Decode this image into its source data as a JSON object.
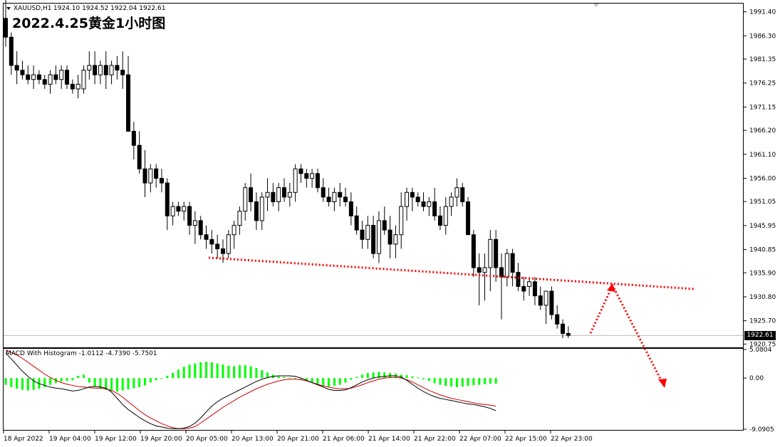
{
  "header": {
    "symbol": "XAUUSD,H1",
    "ohlc": "1924.10 1924.52 1922.04 1922.61",
    "title": "2022.4.25黄金1小时图",
    "last_price": "1922.61"
  },
  "colors": {
    "bull_body": "#ffffff",
    "bear_body": "#000000",
    "histogram": "#00ff00",
    "macd_line": "#000000",
    "signal_line": "#cc0000",
    "annotation": "#ff0000"
  },
  "price_axis": {
    "ticks": [
      "1991.40",
      "1986.30",
      "1981.35",
      "1976.25",
      "1971.15",
      "1966.20",
      "1961.10",
      "1956.00",
      "1951.05",
      "1945.95",
      "1940.85",
      "1935.90",
      "1930.80",
      "1925.70",
      "1920.75"
    ]
  },
  "macd_axis": {
    "ticks": [
      "5.0804",
      "0.00",
      "-9.0905"
    ]
  },
  "time_axis": {
    "labels": [
      "18 Apr 2022",
      "19 Apr 04:00",
      "19 Apr 12:00",
      "19 Apr 20:00",
      "20 Apr 05:00",
      "20 Apr 13:00",
      "20 Apr 21:00",
      "21 Apr 06:00",
      "21 Apr 14:00",
      "21 Apr 22:00",
      "22 Apr 07:00",
      "22 Apr 15:00",
      "22 Apr 23:00"
    ]
  },
  "macd_panel": {
    "label": "MACD With Histogram -1.0112 -4.7390 -5.7501"
  },
  "chart_data": [
    {
      "type": "candlestick",
      "y_range": [
        1920.2,
        1993.0
      ],
      "y_scale": "linear",
      "candles": [
        [
          1990,
          1994,
          1984,
          1986
        ],
        [
          1986,
          1987,
          1978,
          1980
        ],
        [
          1980,
          1983,
          1976,
          1979
        ],
        [
          1979,
          1981,
          1977,
          1978
        ],
        [
          1978,
          1980,
          1976,
          1977
        ],
        [
          1977,
          1980,
          1975,
          1978
        ],
        [
          1978,
          1979,
          1976,
          1977
        ],
        [
          1977,
          1978,
          1975,
          1976
        ],
        [
          1976,
          1979,
          1974,
          1978
        ],
        [
          1978,
          1980,
          1976,
          1977
        ],
        [
          1977,
          1980,
          1975,
          1979
        ],
        [
          1979,
          1980,
          1975,
          1976
        ],
        [
          1976,
          1977,
          1974,
          1975
        ],
        [
          1975,
          1978,
          1973,
          1976
        ],
        [
          1975,
          1980,
          1974,
          1979
        ],
        [
          1979,
          1983,
          1977,
          1980
        ],
        [
          1980,
          1983,
          1976,
          1978
        ],
        [
          1978,
          1981,
          1976,
          1980
        ],
        [
          1980,
          1983,
          1975,
          1978
        ],
        [
          1978,
          1981,
          1976,
          1980
        ],
        [
          1980,
          1982,
          1977,
          1979
        ],
        [
          1979,
          1983,
          1975,
          1978
        ],
        [
          1978,
          1982,
          1966,
          1966
        ],
        [
          1966,
          1968,
          1960,
          1963
        ],
        [
          1963,
          1966,
          1957,
          1958
        ],
        [
          1958,
          1962,
          1952,
          1955
        ],
        [
          1955,
          1959,
          1953,
          1958
        ],
        [
          1958,
          1959,
          1954,
          1956
        ],
        [
          1956,
          1958,
          1953,
          1955
        ],
        [
          1955,
          1956,
          1945,
          1948
        ],
        [
          1948,
          1951,
          1946,
          1950
        ],
        [
          1950,
          1951,
          1948,
          1949
        ],
        [
          1949,
          1951,
          1947,
          1950
        ],
        [
          1950,
          1951,
          1944,
          1946
        ],
        [
          1946,
          1949,
          1942,
          1947
        ],
        [
          1947,
          1948,
          1943,
          1944
        ],
        [
          1944,
          1946,
          1941,
          1943
        ],
        [
          1943,
          1945,
          1940,
          1942
        ],
        [
          1942,
          1944,
          1939,
          1941
        ],
        [
          1941,
          1943,
          1938,
          1940
        ],
        [
          1940,
          1945,
          1939,
          1944
        ],
        [
          1944,
          1947,
          1941,
          1946
        ],
        [
          1946,
          1950,
          1944,
          1949
        ],
        [
          1949,
          1955,
          1947,
          1954
        ],
        [
          1954,
          1957,
          1949,
          1951
        ],
        [
          1951,
          1953,
          1945,
          1947
        ],
        [
          1947,
          1953,
          1945,
          1952
        ],
        [
          1952,
          1956,
          1949,
          1953
        ],
        [
          1953,
          1955,
          1950,
          1951
        ],
        [
          1951,
          1955,
          1949,
          1954
        ],
        [
          1954,
          1956,
          1951,
          1952
        ],
        [
          1952,
          1955,
          1950,
          1953
        ],
        [
          1953,
          1959,
          1951,
          1958
        ],
        [
          1958,
          1959,
          1955,
          1957
        ],
        [
          1957,
          1958,
          1954,
          1956
        ],
        [
          1956,
          1958,
          1954,
          1957
        ],
        [
          1957,
          1958,
          1953,
          1954
        ],
        [
          1954,
          1956,
          1951,
          1952
        ],
        [
          1952,
          1954,
          1950,
          1951
        ],
        [
          1951,
          1954,
          1949,
          1953
        ],
        [
          1953,
          1955,
          1950,
          1952
        ],
        [
          1952,
          1954,
          1950,
          1951
        ],
        [
          1951,
          1953,
          1946,
          1948
        ],
        [
          1948,
          1950,
          1944,
          1945
        ],
        [
          1945,
          1947,
          1941,
          1943
        ],
        [
          1943,
          1948,
          1941,
          1946
        ],
        [
          1946,
          1948,
          1939,
          1940
        ],
        [
          1940,
          1949,
          1938,
          1947
        ],
        [
          1947,
          1950,
          1944,
          1945
        ],
        [
          1945,
          1948,
          1939,
          1942
        ],
        [
          1942,
          1946,
          1939,
          1944
        ],
        [
          1944,
          1953,
          1941,
          1950
        ],
        [
          1950,
          1954,
          1947,
          1953
        ],
        [
          1953,
          1954,
          1949,
          1952
        ],
        [
          1952,
          1953,
          1950,
          1951
        ],
        [
          1951,
          1953,
          1949,
          1950
        ],
        [
          1950,
          1952,
          1948,
          1951
        ],
        [
          1951,
          1954,
          1947,
          1948
        ],
        [
          1948,
          1950,
          1945,
          1946
        ],
        [
          1946,
          1952,
          1944,
          1950
        ],
        [
          1950,
          1953,
          1948,
          1952
        ],
        [
          1952,
          1956,
          1950,
          1954
        ],
        [
          1954,
          1955,
          1950,
          1951
        ],
        [
          1951,
          1952,
          1944,
          1944
        ],
        [
          1944,
          1945,
          1935,
          1937
        ],
        [
          1937,
          1940,
          1929,
          1936
        ],
        [
          1936,
          1940,
          1930,
          1937
        ],
        [
          1937,
          1945,
          1932,
          1943
        ],
        [
          1943,
          1945,
          1934,
          1937
        ],
        [
          1937,
          1940,
          1926,
          1935
        ],
        [
          1935,
          1941,
          1933,
          1940
        ],
        [
          1940,
          1941,
          1933,
          1936
        ],
        [
          1936,
          1938,
          1932,
          1933
        ],
        [
          1933,
          1935,
          1930,
          1932
        ],
        [
          1933,
          1935,
          1931,
          1934
        ],
        [
          1934,
          1935,
          1929,
          1931
        ],
        [
          1931,
          1933,
          1928,
          1929
        ],
        [
          1929,
          1932,
          1925,
          1932
        ],
        [
          1932,
          1933,
          1926,
          1927
        ],
        [
          1927,
          1929,
          1924,
          1925
        ],
        [
          1925,
          1926,
          1922,
          1923
        ],
        [
          1923,
          1924.52,
          1922.04,
          1922.61
        ]
      ],
      "annotation": "dotted red trendline with dotted red arrow path (up to trendline, then down)"
    },
    {
      "type": "line",
      "y_range": [
        -9.0905,
        5.0804
      ],
      "series": [
        {
          "values": [
            4.5,
            3.4,
            2.3,
            1.2,
            0.3,
            -0.5,
            -1.0,
            -1.3,
            -1.6,
            -1.8,
            -1.9,
            -2.1,
            -2.3,
            -2.2,
            -1.9,
            -1.6,
            -1.5,
            -1.6,
            -1.8,
            -2.5,
            -3.6,
            -4.7,
            -5.6,
            -6.3,
            -7.0,
            -7.6,
            -8.1,
            -8.5,
            -8.7,
            -8.9,
            -9.0,
            -9.0,
            -8.9,
            -8.6,
            -8.0,
            -7.1,
            -6.0,
            -5.0,
            -4.2,
            -3.6,
            -3.1,
            -2.6,
            -2.1,
            -1.6,
            -1.1,
            -0.6,
            -0.2,
            0.1,
            0.3,
            0.4,
            0.4,
            0.4,
            0.3,
            0.0,
            -0.4,
            -0.8,
            -1.2,
            -1.6,
            -2.0,
            -2.2,
            -2.2,
            -2.1,
            -1.7,
            -1.2,
            -0.7,
            -0.3,
            0.0,
            0.2,
            0.3,
            0.4,
            0.4,
            0.2,
            -0.4,
            -1.1,
            -1.8,
            -2.4,
            -2.9,
            -3.3,
            -3.6,
            -3.8,
            -4.0,
            -4.2,
            -4.4,
            -4.6,
            -4.7,
            -4.9,
            -5.1,
            -5.4,
            -5.8
          ]
        }
      ]
    },
    {
      "type": "line",
      "series": [
        {
          "values": [
            5.0,
            4.6,
            4.1,
            3.5,
            2.8,
            2.1,
            1.4,
            0.7,
            0.1,
            -0.4,
            -0.8,
            -1.1,
            -1.3,
            -1.5,
            -1.6,
            -1.7,
            -1.8,
            -1.8,
            -1.9,
            -2.2,
            -2.7,
            -3.4,
            -4.2,
            -5.0,
            -5.8,
            -6.5,
            -7.1,
            -7.6,
            -8.1,
            -8.5,
            -8.8,
            -9.0,
            -9.0,
            -8.9,
            -8.6,
            -8.0,
            -7.3,
            -6.6,
            -5.9,
            -5.2,
            -4.6,
            -4.0,
            -3.4,
            -2.9,
            -2.4,
            -1.9,
            -1.5,
            -1.1,
            -0.8,
            -0.5,
            -0.3,
            -0.2,
            -0.2,
            -0.3,
            -0.5,
            -0.8,
            -1.1,
            -1.4,
            -1.6,
            -1.8,
            -1.9,
            -1.9,
            -1.8,
            -1.5,
            -1.2,
            -0.8,
            -0.5,
            -0.2,
            0.0,
            0.1,
            0.1,
            0.0,
            -0.3,
            -0.7,
            -1.2,
            -1.7,
            -2.2,
            -2.6,
            -3.0,
            -3.3,
            -3.6,
            -3.8,
            -4.0,
            -4.2,
            -4.4,
            -4.6,
            -4.7,
            -4.8,
            -5.0
          ]
        }
      ]
    },
    {
      "type": "bar",
      "values": [
        -1.2,
        -1.6,
        -1.9,
        -2.1,
        -2.2,
        -2.1,
        -1.9,
        -1.6,
        -1.2,
        -0.9,
        -0.6,
        -0.5,
        -0.4,
        0.4,
        0.6,
        -0.8,
        -1.5,
        -1.9,
        -2.1,
        -2.3,
        -2.4,
        -2.2,
        -2.0,
        -1.8,
        -1.6,
        -1.3,
        -0.8,
        -0.4,
        0.0,
        0.4,
        0.9,
        1.5,
        2.0,
        2.4,
        2.6,
        2.8,
        2.9,
        2.8,
        2.6,
        2.4,
        2.2,
        2.1,
        2.3,
        2.3,
        2.1,
        1.8,
        1.4,
        1.0,
        0.6,
        0.3,
        0.2,
        0.1,
        -0.1,
        -0.2,
        -0.4,
        -0.8,
        -1.1,
        -1.4,
        -1.5,
        -1.4,
        -1.2,
        -0.8,
        -0.3,
        0.2,
        0.6,
        0.9,
        1.0,
        1.1,
        1.0,
        0.9,
        0.8,
        0.6,
        0.5,
        0.3,
        0.1,
        -0.2,
        -0.5,
        -0.9,
        -1.2,
        -1.4,
        -1.5,
        -1.6,
        -1.5,
        -1.4,
        -1.3,
        -1.2,
        -1.1,
        -1.0,
        -1.0
      ]
    }
  ]
}
